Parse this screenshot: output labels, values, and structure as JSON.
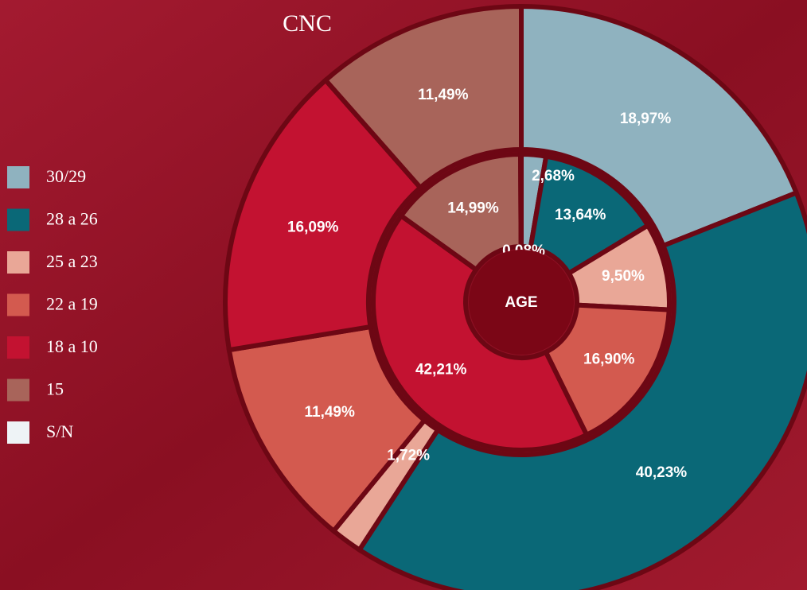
{
  "chart_data": {
    "type": "donut",
    "categories": [
      "30/29",
      "28 a 26",
      "25 a 23",
      "22 a 19",
      "18 a 10",
      "15",
      "S/N"
    ],
    "colors": [
      "#8fb2bf",
      "#0a6877",
      "#e9a797",
      "#d35a4f",
      "#c31231",
      "#a8645a",
      "#eef3f6"
    ],
    "series": [
      {
        "name": "CNC",
        "values": [
          18.97,
          40.23,
          1.72,
          11.49,
          16.09,
          11.49,
          null
        ],
        "value_labels": [
          "18,97%",
          "40,23%",
          "1,72%",
          "11,49%",
          "16,09%",
          "11,49%",
          null
        ]
      },
      {
        "name": "AGE",
        "values": [
          2.68,
          13.64,
          9.5,
          16.9,
          42.21,
          14.99,
          0.08
        ],
        "value_labels": [
          "2,68%",
          "13,64%",
          "9,50%",
          "16,90%",
          "42,21%",
          "14,99%",
          "0,08%"
        ]
      }
    ],
    "legend": "left"
  }
}
